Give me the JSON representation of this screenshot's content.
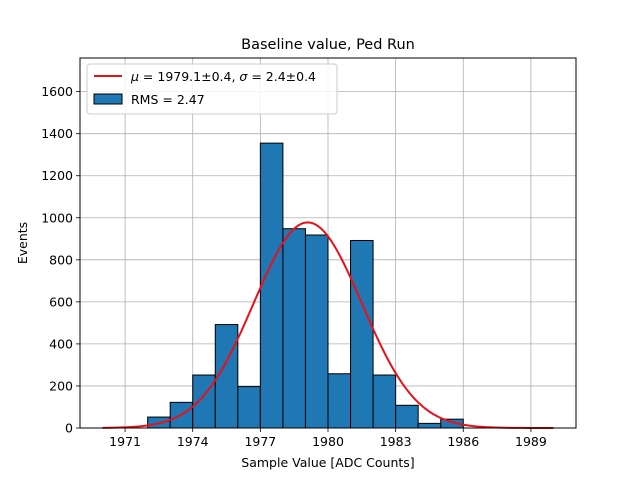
{
  "chart_data": {
    "type": "bar",
    "title": "Baseline value, Ped Run",
    "xlabel": "Sample Value [ADC Counts]",
    "ylabel": "Events",
    "xlim": [
      1969,
      1991
    ],
    "ylim": [
      0,
      1760
    ],
    "grid": true,
    "xticks": [
      1971,
      1974,
      1977,
      1980,
      1983,
      1986,
      1989
    ],
    "yticks": [
      0,
      200,
      400,
      600,
      800,
      1000,
      1200,
      1400,
      1600
    ],
    "bin_width": 1,
    "bins": [
      {
        "x": 1972.5,
        "value": 52
      },
      {
        "x": 1973.5,
        "value": 122
      },
      {
        "x": 1974.5,
        "value": 252
      },
      {
        "x": 1975.5,
        "value": 492
      },
      {
        "x": 1976.5,
        "value": 197
      },
      {
        "x": 1977.5,
        "value": 1355
      },
      {
        "x": 1978.5,
        "value": 948
      },
      {
        "x": 1979.5,
        "value": 918
      },
      {
        "x": 1980.5,
        "value": 258
      },
      {
        "x": 1981.5,
        "value": 892
      },
      {
        "x": 1982.5,
        "value": 252
      },
      {
        "x": 1983.5,
        "value": 108
      },
      {
        "x": 1984.5,
        "value": 22
      },
      {
        "x": 1985.5,
        "value": 42
      }
    ],
    "bar_color": "#1f77b4",
    "fit": {
      "type": "gaussian",
      "mu": 1979.1,
      "sigma": 2.4,
      "amplitude": 978,
      "x_range": [
        1970,
        1990
      ],
      "color": "#e8111a"
    },
    "legend": {
      "position": "top-left",
      "entries": [
        {
          "label": "$\\mu = 1979.1 \\pm 0.4$, $\\sigma = 2.4 \\pm 0.4$",
          "display": [
            "μ",
            " = 1979.1±0.4, ",
            "σ",
            " = 2.4±0.4"
          ],
          "kind": "line"
        },
        {
          "label": "RMS = 2.47",
          "kind": "patch"
        }
      ]
    }
  }
}
